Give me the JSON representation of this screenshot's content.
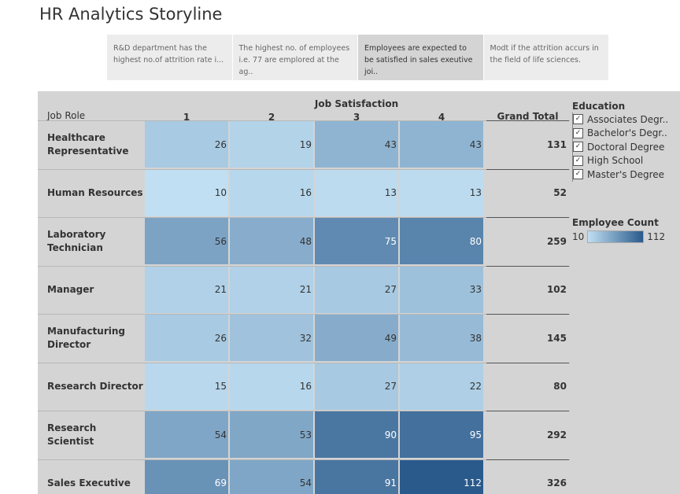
{
  "title": "HR Analytics Storyline",
  "story_points": [
    {
      "text": "R&D department has the highest no.of attrition rate i...",
      "active": false
    },
    {
      "text": "The highest no. of employees i.e. 77 are emplored at the ag..",
      "active": false
    },
    {
      "text": "Employees are expected to be satisfied in sales exeutive joi..",
      "active": true
    },
    {
      "text": "Modt if the attrition accurs in the field of life sciences.",
      "active": false
    }
  ],
  "table": {
    "row_header": "Job Role",
    "column_group_header": "Job Satisfaction",
    "columns": [
      "1",
      "2",
      "3",
      "4"
    ],
    "grand_total_header": "Grand Total",
    "rows": [
      {
        "label": "Healthcare Representative",
        "values": [
          "26",
          "19",
          "43",
          "43"
        ],
        "total": "131"
      },
      {
        "label": "Human Resources",
        "values": [
          "10",
          "16",
          "13",
          "13"
        ],
        "total": "52"
      },
      {
        "label": "Laboratory Technician",
        "values": [
          "56",
          "48",
          "75",
          "80"
        ],
        "total": "259"
      },
      {
        "label": "Manager",
        "values": [
          "21",
          "21",
          "27",
          "33"
        ],
        "total": "102"
      },
      {
        "label": "Manufacturing Director",
        "values": [
          "26",
          "32",
          "49",
          "38"
        ],
        "total": "145"
      },
      {
        "label": "Research Director",
        "values": [
          "15",
          "16",
          "27",
          "22"
        ],
        "total": "80"
      },
      {
        "label": "Research Scientist",
        "values": [
          "54",
          "53",
          "90",
          "95"
        ],
        "total": "292"
      },
      {
        "label": "Sales Executive",
        "values": [
          "69",
          "54",
          "91",
          "112"
        ],
        "total": "326"
      }
    ]
  },
  "education_legend": {
    "title": "Education",
    "items": [
      "Associates Degr..",
      "Bachelor's Degr..",
      "Doctoral Degree",
      "High School",
      "Master's Degree"
    ],
    "check_glyph": "✓"
  },
  "color_legend": {
    "title": "Employee Count",
    "min": "10",
    "max": "112",
    "min_value": 10,
    "max_value": 112,
    "color_low": "#c0dff2",
    "color_high": "#2a5a8c"
  }
}
